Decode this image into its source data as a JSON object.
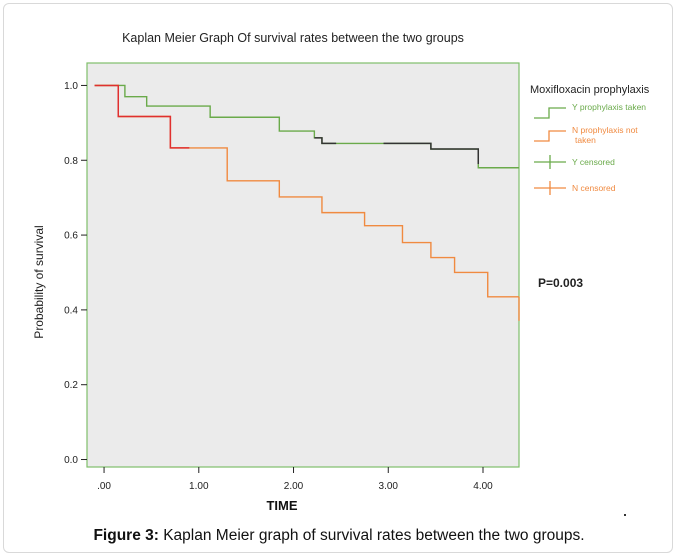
{
  "chart_data": {
    "type": "line",
    "step": true,
    "title": "Kaplan Meier Graph Of survival rates between the two groups",
    "xlabel": "TIME",
    "ylabel": "Probability of  survival",
    "xlim": [
      -0.18,
      4.38
    ],
    "ylim": [
      -0.02,
      1.06
    ],
    "x_ticks": [
      0,
      1,
      2,
      3,
      4
    ],
    "x_tick_labels": [
      ".00",
      "1.00",
      "2.00",
      "3.00",
      "4.00"
    ],
    "y_ticks": [
      0,
      0.2,
      0.4,
      0.6,
      0.8,
      1.0
    ],
    "y_tick_labels": [
      "0.0",
      "0.2",
      "0.4",
      "0.6",
      "0.8",
      "1.0"
    ],
    "grid": false,
    "legend_title": "Moxifloxacin prophylaxis",
    "legend_position": "right",
    "series": [
      {
        "name": "Y prophylaxis taken",
        "color": "#6aaa4a",
        "points": [
          [
            -0.1,
            1.0
          ],
          [
            0.22,
            0.97
          ],
          [
            0.45,
            0.945
          ],
          [
            1.12,
            0.915
          ],
          [
            1.85,
            0.878
          ],
          [
            2.22,
            0.86
          ],
          [
            2.3,
            0.845
          ],
          [
            3.45,
            0.83
          ],
          [
            3.95,
            0.78
          ],
          [
            4.38,
            0.78
          ]
        ]
      },
      {
        "name": "N prophylaxis not taken",
        "color": "#f08a40",
        "points": [
          [
            -0.1,
            1.0
          ],
          [
            0.15,
            0.917
          ],
          [
            0.7,
            0.833
          ],
          [
            1.3,
            0.745
          ],
          [
            1.85,
            0.702
          ],
          [
            2.3,
            0.66
          ],
          [
            2.75,
            0.625
          ],
          [
            3.15,
            0.58
          ],
          [
            3.45,
            0.54
          ],
          [
            3.7,
            0.5
          ],
          [
            4.05,
            0.435
          ],
          [
            4.38,
            0.435
          ]
        ]
      }
    ],
    "overlays": [
      {
        "color": "#e03030",
        "points": [
          [
            -0.1,
            1.0
          ],
          [
            0.15,
            1.0
          ],
          [
            0.15,
            0.917
          ],
          [
            0.7,
            0.917
          ],
          [
            0.7,
            0.833
          ],
          [
            0.9,
            0.833
          ]
        ]
      },
      {
        "color": "#333333",
        "points": [
          [
            2.22,
            0.86
          ],
          [
            2.3,
            0.86
          ],
          [
            2.3,
            0.845
          ],
          [
            2.45,
            0.845
          ]
        ]
      },
      {
        "color": "#333333",
        "points": [
          [
            2.95,
            0.845
          ],
          [
            3.45,
            0.845
          ],
          [
            3.45,
            0.83
          ],
          [
            3.95,
            0.83
          ],
          [
            3.95,
            0.79
          ]
        ]
      }
    ],
    "legend_entries": [
      {
        "label": "Y prophylaxis taken",
        "color": "#6aaa4a",
        "kind": "step"
      },
      {
        "label": "N prophylaxis not",
        "label2": "taken",
        "color": "#f08a40",
        "kind": "step"
      },
      {
        "label": "Y censored",
        "color": "#6aaa4a",
        "kind": "cross"
      },
      {
        "label": "N censored",
        "color": "#f08a40",
        "kind": "cross"
      }
    ],
    "annotation": "P=0.003"
  },
  "caption": {
    "label": "Figure 3:",
    "text": " Kaplan Meier graph of survival rates between the two groups."
  }
}
